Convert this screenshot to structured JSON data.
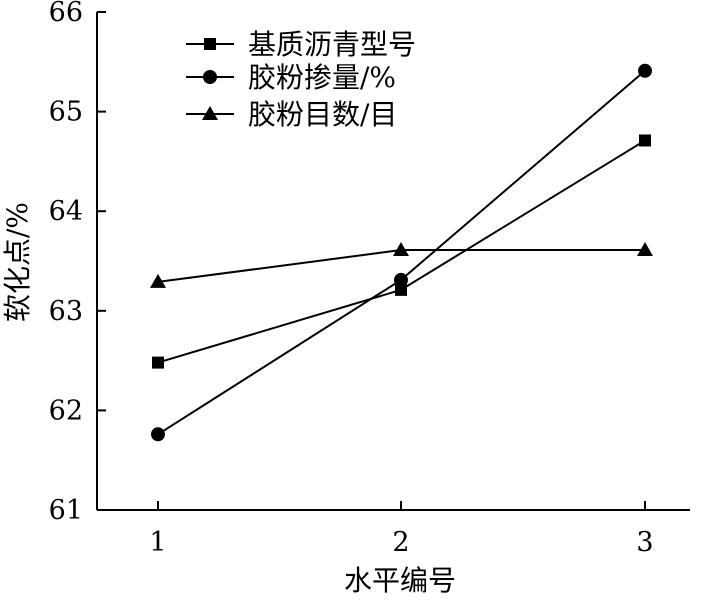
{
  "chart_data": {
    "type": "line",
    "xlabel": "水平编号",
    "ylabel": "软化点/%",
    "categories": [
      "1",
      "2",
      "3"
    ],
    "x": [
      1,
      2,
      3
    ],
    "ylim": [
      61,
      66
    ],
    "yticks": [
      61,
      62,
      63,
      64,
      65,
      66
    ],
    "grid": false,
    "legend_position": "top-left",
    "series": [
      {
        "name": "基质沥青型号",
        "marker": "square",
        "values": [
          62.48,
          63.21,
          64.71
        ]
      },
      {
        "name": "胶粉掺量/%",
        "marker": "circle",
        "values": [
          61.76,
          63.31,
          65.41
        ]
      },
      {
        "name": "胶粉目数/目",
        "marker": "triangle",
        "values": [
          63.29,
          63.61,
          63.61
        ]
      }
    ]
  }
}
